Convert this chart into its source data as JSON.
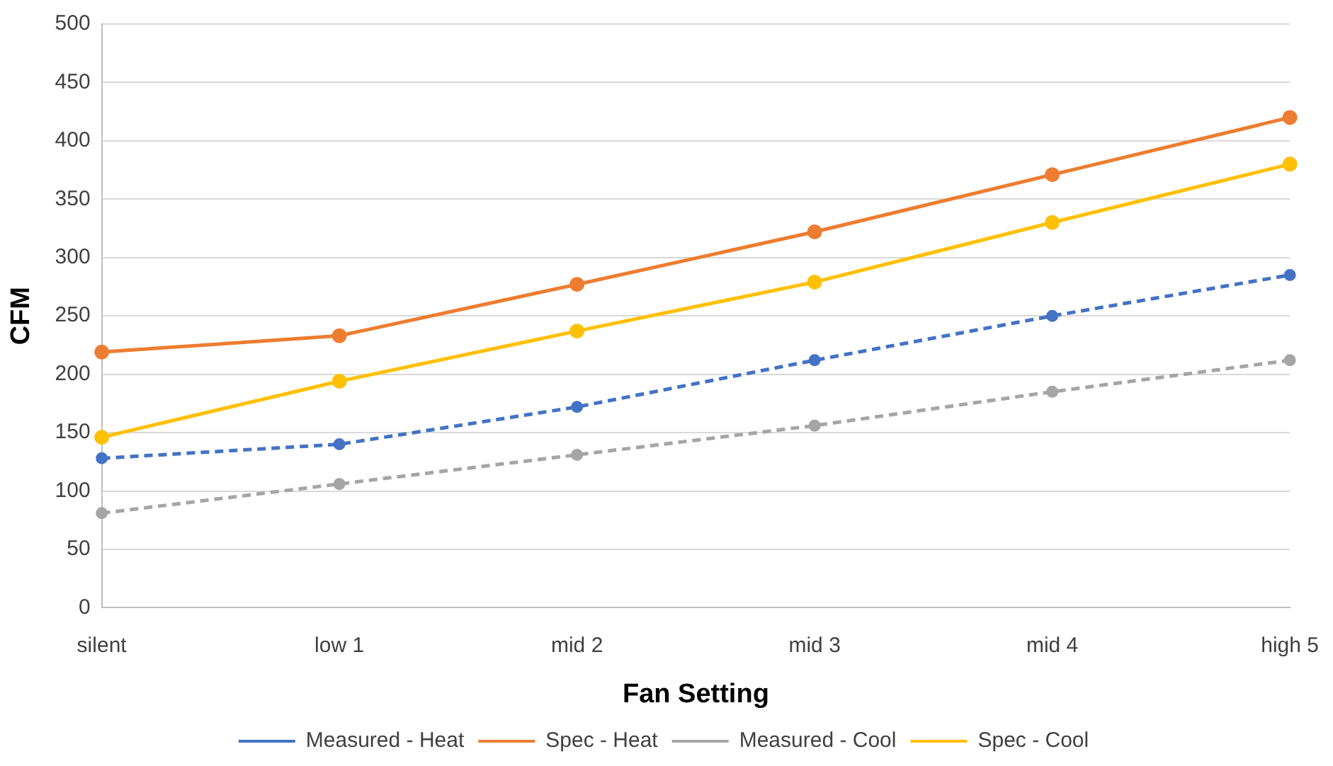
{
  "chart_data": {
    "type": "line",
    "xlabel": "Fan Setting",
    "ylabel": "CFM",
    "categories": [
      "silent",
      "low 1",
      "mid 2",
      "mid 3",
      "mid 4",
      "high 5"
    ],
    "series": [
      {
        "name": "Measured - Heat",
        "color": "#4472c4",
        "line_style": "dashed",
        "values": [
          128,
          140,
          172,
          212,
          250,
          285
        ]
      },
      {
        "name": "Spec - Heat",
        "color": "#ed7d31",
        "line_style": "solid",
        "values": [
          219,
          233,
          277,
          322,
          371,
          420
        ]
      },
      {
        "name": "Measured - Cool",
        "color": "#a5a5a5",
        "line_style": "dashed",
        "values": [
          81,
          106,
          131,
          156,
          185,
          212
        ]
      },
      {
        "name": "Spec - Cool",
        "color": "#ffc000",
        "line_style": "solid",
        "values": [
          146,
          194,
          237,
          279,
          330,
          380
        ]
      }
    ],
    "ylim": [
      0,
      500
    ],
    "yticks": [
      0,
      50,
      100,
      150,
      200,
      250,
      300,
      350,
      400,
      450,
      500
    ],
    "grid": "y",
    "legend": "bottom",
    "marker": "circle"
  }
}
